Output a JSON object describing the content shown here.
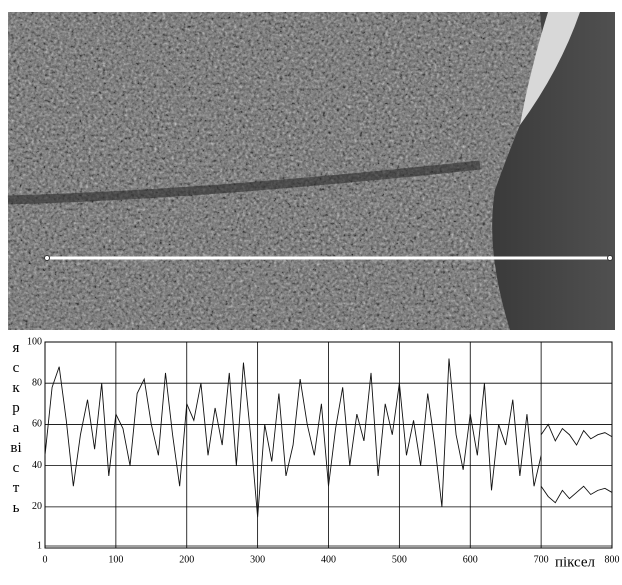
{
  "chart_data": {
    "type": "line",
    "y_label": "яскравість",
    "x_label": "піксел",
    "x": [
      0,
      10,
      20,
      30,
      40,
      50,
      60,
      70,
      80,
      90,
      100,
      110,
      120,
      130,
      140,
      150,
      160,
      170,
      180,
      190,
      200,
      210,
      220,
      230,
      240,
      250,
      260,
      270,
      280,
      290,
      300,
      310,
      320,
      330,
      340,
      350,
      360,
      370,
      380,
      390,
      400,
      410,
      420,
      430,
      440,
      450,
      460,
      470,
      480,
      490,
      500,
      510,
      520,
      530,
      540,
      550,
      560,
      570,
      580,
      590,
      600,
      610,
      620,
      630,
      640,
      650,
      660,
      670,
      680,
      690,
      700,
      710,
      720,
      730,
      740,
      750,
      760,
      770,
      780,
      790,
      800
    ],
    "series": [
      {
        "color": "#111111",
        "values": [
          45,
          78,
          88,
          62,
          30,
          55,
          72,
          48,
          80,
          35,
          65,
          58,
          40,
          75,
          82,
          60,
          45,
          85,
          55,
          30,
          70,
          62,
          80,
          45,
          68,
          50,
          85,
          40,
          90,
          55,
          15,
          60,
          42,
          75,
          35,
          50,
          82,
          60,
          45,
          70,
          30,
          58,
          78,
          40,
          65,
          52,
          85,
          35,
          70,
          55,
          80,
          45,
          62,
          40,
          75,
          50,
          20,
          92,
          55,
          38,
          65,
          45,
          80,
          28,
          60,
          50,
          72,
          35,
          65,
          30,
          45,
          null,
          null,
          null,
          null,
          null,
          null,
          null,
          null,
          null,
          null
        ]
      },
      {
        "color": "#111111",
        "values": [
          null,
          null,
          null,
          null,
          null,
          null,
          null,
          null,
          null,
          null,
          null,
          null,
          null,
          null,
          null,
          null,
          null,
          null,
          null,
          null,
          null,
          null,
          null,
          null,
          null,
          null,
          null,
          null,
          null,
          null,
          null,
          null,
          null,
          null,
          null,
          null,
          null,
          null,
          null,
          null,
          null,
          null,
          null,
          null,
          null,
          null,
          null,
          null,
          null,
          null,
          null,
          null,
          null,
          null,
          null,
          null,
          null,
          null,
          null,
          null,
          null,
          null,
          null,
          null,
          null,
          null,
          null,
          null,
          null,
          null,
          55,
          60,
          52,
          58,
          55,
          50,
          57,
          53,
          55,
          56,
          54
        ]
      },
      {
        "color": "#111111",
        "values": [
          null,
          null,
          null,
          null,
          null,
          null,
          null,
          null,
          null,
          null,
          null,
          null,
          null,
          null,
          null,
          null,
          null,
          null,
          null,
          null,
          null,
          null,
          null,
          null,
          null,
          null,
          null,
          null,
          null,
          null,
          null,
          null,
          null,
          null,
          null,
          null,
          null,
          null,
          null,
          null,
          null,
          null,
          null,
          null,
          null,
          null,
          null,
          null,
          null,
          null,
          null,
          null,
          null,
          null,
          null,
          null,
          null,
          null,
          null,
          null,
          null,
          null,
          null,
          null,
          null,
          null,
          null,
          null,
          null,
          null,
          30,
          25,
          22,
          28,
          24,
          27,
          30,
          26,
          28,
          29,
          27
        ]
      }
    ],
    "xlim": [
      0,
      800
    ],
    "xticks": [
      0,
      100,
      200,
      300,
      400,
      500,
      600,
      700,
      800
    ],
    "ylim": [
      1,
      100
    ],
    "yticks": [
      1,
      20,
      40,
      60,
      80,
      100
    ],
    "grid": true
  }
}
